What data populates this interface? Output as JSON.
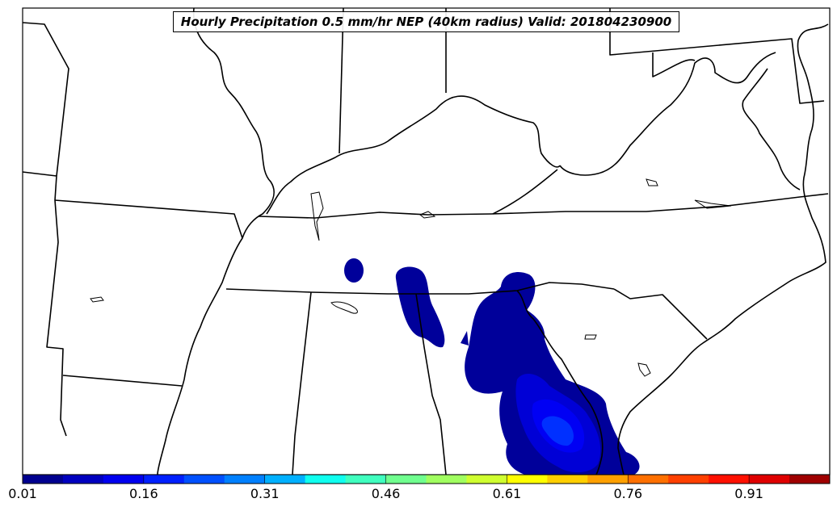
{
  "map": {
    "title": "Hourly Precipitation 0.5 mm/hr NEP (40km radius) Valid: 201804230900"
  },
  "colorbar": {
    "min": 0.01,
    "max": 1.01,
    "tick_labels": [
      "0.01",
      "0.16",
      "0.31",
      "0.46",
      "0.61",
      "0.76",
      "0.91"
    ],
    "colors": [
      "#00008f",
      "#0000bf",
      "#0000ef",
      "#0020ff",
      "#0050ff",
      "#0080ff",
      "#00b0ff",
      "#10ffef",
      "#40ffbf",
      "#70ff8f",
      "#a0ff60",
      "#cfff30",
      "#ffff00",
      "#ffcf00",
      "#ffa000",
      "#ff7000",
      "#ff4000",
      "#ff1000",
      "#df0000",
      "#9f0000"
    ]
  },
  "legend_colors": {
    "low": "#00008f",
    "mid_low": "#0000ef",
    "mid": "#0030ff"
  }
}
